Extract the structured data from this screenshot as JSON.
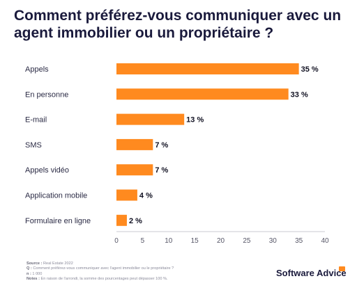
{
  "title": "Comment préférez-vous communiquer avec un agent immobilier ou un propriétaire ?",
  "chart_data": {
    "type": "bar",
    "orientation": "horizontal",
    "categories": [
      "Appels",
      "En personne",
      "E-mail",
      "SMS",
      "Appels vidéo",
      "Application mobile",
      "Formulaire en ligne"
    ],
    "values": [
      35,
      33,
      13,
      7,
      7,
      4,
      2
    ],
    "value_labels": [
      "35 %",
      "33 %",
      "13 %",
      "7 %",
      "7 %",
      "4 %",
      "2 %"
    ],
    "xlim": [
      0,
      40
    ],
    "xticks": [
      0,
      5,
      10,
      15,
      20,
      25,
      30,
      35,
      40
    ],
    "grid": false,
    "bar_color": "#ff8a1f"
  },
  "footer": {
    "source_key": "Source :",
    "source_value": "Real Estate 2022",
    "question_key": "Q :",
    "question_value": "Comment préférez-vous communiquer avec l'agent immobilier ou le propriétaire ?",
    "n_key": "n :",
    "n_value": "1 000",
    "notes_key": "Notes :",
    "notes_value": "En raison de l'arrondi, la somme des pourcentages peut dépasser 100 %."
  },
  "brand": "Software Advice",
  "colors": {
    "accent": "#ff8a1f",
    "title": "#1a1a3c"
  }
}
